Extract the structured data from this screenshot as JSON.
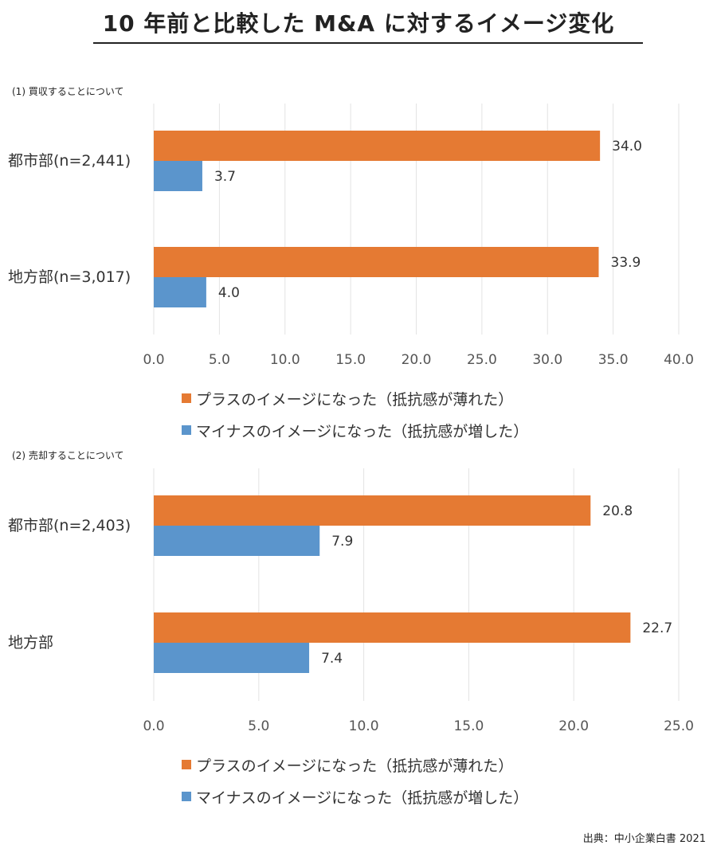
{
  "title": "10 年前と比較した M&A に対するイメージ変化",
  "source": "出典：中小企業白書 2021",
  "colors": {
    "plus": "#E57A33",
    "minus": "#5B95CC",
    "grid": "#E3E3E3",
    "axis_text": "#555555"
  },
  "legend": {
    "plus": "プラスのイメージになった（抵抗感が薄れた）",
    "minus": "マイナスのイメージになった（抵抗感が増した）"
  },
  "chart_data": [
    {
      "type": "bar",
      "orientation": "horizontal",
      "title": "(1) 買収することについて",
      "categories": [
        "都市部(n=2,441)",
        "地方部(n=3,017)"
      ],
      "series": [
        {
          "name": "プラスのイメージになった（抵抗感が薄れた）",
          "values": [
            34.0,
            33.9
          ]
        },
        {
          "name": "マイナスのイメージになった（抵抗感が増した）",
          "values": [
            3.7,
            4.0
          ]
        }
      ],
      "xlim": [
        0,
        40
      ],
      "xticks": [
        "0.0",
        "5.0",
        "10.0",
        "15.0",
        "20.0",
        "25.0",
        "30.0",
        "35.0",
        "40.0"
      ],
      "grid": true,
      "legend_position": "bottom"
    },
    {
      "type": "bar",
      "orientation": "horizontal",
      "title": "(2) 売却することについて",
      "categories": [
        "都市部(n=2,403)",
        "地方部"
      ],
      "series": [
        {
          "name": "プラスのイメージになった（抵抗感が薄れた）",
          "values": [
            20.8,
            22.7
          ]
        },
        {
          "name": "マイナスのイメージになった（抵抗感が増した）",
          "values": [
            7.9,
            7.4
          ]
        }
      ],
      "xlim": [
        0,
        25
      ],
      "xticks": [
        "0.0",
        "5.0",
        "10.0",
        "15.0",
        "20.0",
        "25.0"
      ],
      "grid": true,
      "legend_position": "bottom"
    }
  ]
}
